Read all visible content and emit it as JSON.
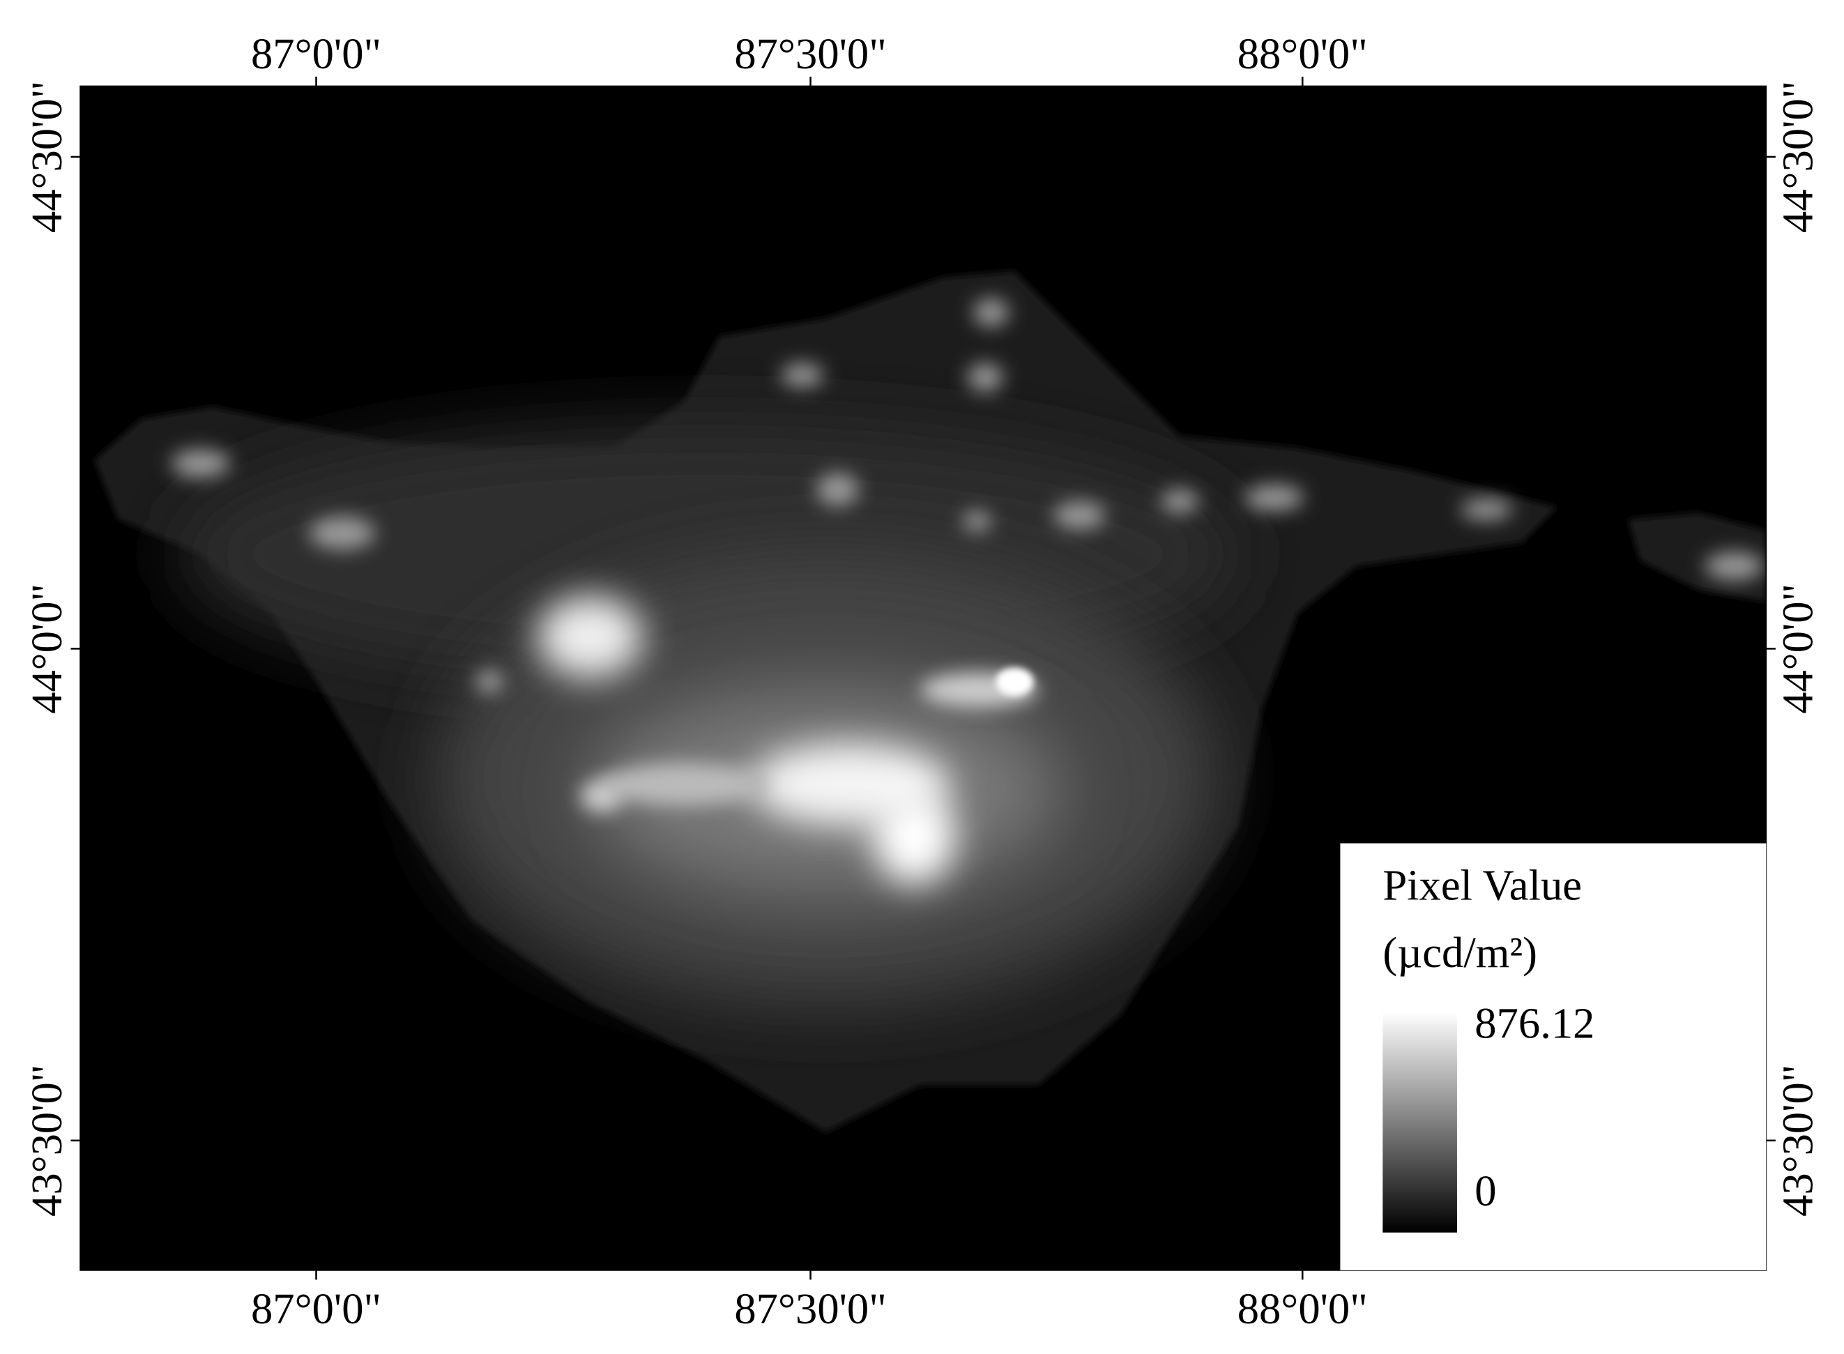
{
  "map": {
    "longitude_labels": [
      "87°0'0\"",
      "87°30'0\"",
      "88°0'0\""
    ],
    "latitude_labels": [
      "44°30'0\"",
      "44°0'0\"",
      "43°30'0\""
    ],
    "legend": {
      "title": [
        "Pixel Value",
        "(µcd/m²)"
      ],
      "max": 876.12,
      "min": 0
    }
  }
}
